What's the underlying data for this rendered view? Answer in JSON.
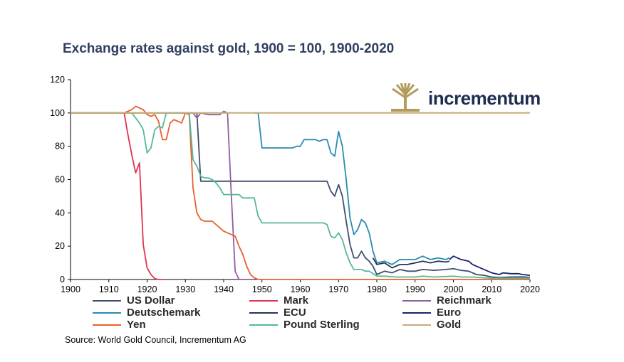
{
  "title": "Exchange rates against gold, 1900 = 100, 1900-2020",
  "source": "Source: World Gold Council, Incrementum AG",
  "logo": {
    "text": "incrementum",
    "icon": "tree-icon",
    "color": "#1f2d4f",
    "icon_color": "#b39b5c"
  },
  "chart_data": {
    "type": "line",
    "title": "Exchange rates against gold, 1900 = 100, 1900-2020",
    "xlabel": "",
    "ylabel": "",
    "xlim": [
      1900,
      2020
    ],
    "ylim": [
      0,
      120
    ],
    "xticks": [
      1900,
      1910,
      1920,
      1930,
      1940,
      1950,
      1960,
      1970,
      1980,
      1990,
      2000,
      2010,
      2020
    ],
    "yticks": [
      0,
      20,
      40,
      60,
      80,
      100,
      120
    ],
    "grid": false,
    "legend_position": "bottom",
    "series": [
      {
        "name": "US Dollar",
        "color": "#3f4e6e",
        "points": [
          [
            1900,
            100
          ],
          [
            1933,
            100
          ],
          [
            1934,
            59
          ],
          [
            1967,
            59
          ],
          [
            1968,
            53
          ],
          [
            1969,
            50
          ],
          [
            1970,
            57
          ],
          [
            1971,
            50
          ],
          [
            1972,
            35
          ],
          [
            1973,
            21
          ],
          [
            1974,
            13
          ],
          [
            1975,
            13
          ],
          [
            1976,
            17
          ],
          [
            1977,
            13
          ],
          [
            1978,
            11
          ],
          [
            1979,
            8
          ],
          [
            1980,
            3
          ],
          [
            1982,
            5
          ],
          [
            1984,
            4
          ],
          [
            1986,
            6
          ],
          [
            1988,
            5
          ],
          [
            1990,
            5
          ],
          [
            1992,
            6
          ],
          [
            1995,
            5.5
          ],
          [
            1998,
            6
          ],
          [
            2000,
            6.5
          ],
          [
            2002,
            5.5
          ],
          [
            2004,
            5
          ],
          [
            2006,
            3
          ],
          [
            2008,
            2.5
          ],
          [
            2010,
            1.5
          ],
          [
            2012,
            1.2
          ],
          [
            2015,
            1.5
          ],
          [
            2018,
            1.6
          ],
          [
            2020,
            1.3
          ]
        ]
      },
      {
        "name": "Mark",
        "color": "#e0334f",
        "points": [
          [
            1900,
            100
          ],
          [
            1914,
            100
          ],
          [
            1915,
            87
          ],
          [
            1916,
            75
          ],
          [
            1917,
            64
          ],
          [
            1918,
            70
          ],
          [
            1919,
            21
          ],
          [
            1920,
            7
          ],
          [
            1921,
            3
          ],
          [
            1922,
            0.5
          ],
          [
            1923,
            0
          ],
          [
            1924,
            0
          ]
        ]
      },
      {
        "name": "Reichmark",
        "color": "#8f5fa0",
        "points": [
          [
            1924,
            100
          ],
          [
            1932,
            100
          ],
          [
            1933,
            97
          ],
          [
            1934,
            100
          ],
          [
            1936,
            99
          ],
          [
            1938,
            99
          ],
          [
            1939,
            99
          ],
          [
            1940,
            101
          ],
          [
            1941,
            100
          ],
          [
            1942,
            50
          ],
          [
            1943,
            5
          ],
          [
            1944,
            0
          ],
          [
            1948,
            0
          ]
        ]
      },
      {
        "name": "Deutschemark",
        "color": "#2a8ab4",
        "points": [
          [
            1948,
            100
          ],
          [
            1949,
            100
          ],
          [
            1950,
            79
          ],
          [
            1958,
            79
          ],
          [
            1959,
            80
          ],
          [
            1960,
            80
          ],
          [
            1961,
            84
          ],
          [
            1962,
            84
          ],
          [
            1964,
            84
          ],
          [
            1965,
            83
          ],
          [
            1966,
            84
          ],
          [
            1967,
            84
          ],
          [
            1968,
            76
          ],
          [
            1969,
            74
          ],
          [
            1970,
            89
          ],
          [
            1971,
            80
          ],
          [
            1972,
            60
          ],
          [
            1973,
            37
          ],
          [
            1974,
            27
          ],
          [
            1975,
            30
          ],
          [
            1976,
            36
          ],
          [
            1977,
            34
          ],
          [
            1978,
            28
          ],
          [
            1979,
            17
          ],
          [
            1980,
            10
          ],
          [
            1982,
            11
          ],
          [
            1984,
            9
          ],
          [
            1986,
            12
          ],
          [
            1988,
            12
          ],
          [
            1990,
            12
          ],
          [
            1992,
            14
          ],
          [
            1994,
            12
          ],
          [
            1996,
            13
          ],
          [
            1998,
            12
          ],
          [
            1999,
            13
          ]
        ]
      },
      {
        "name": "ECU",
        "color": "#243556",
        "points": [
          [
            1979,
            13
          ],
          [
            1980,
            9
          ],
          [
            1982,
            10
          ],
          [
            1984,
            7
          ],
          [
            1986,
            9
          ],
          [
            1988,
            9
          ],
          [
            1990,
            10
          ],
          [
            1992,
            11
          ],
          [
            1994,
            10
          ],
          [
            1996,
            11
          ],
          [
            1998,
            10.5
          ],
          [
            1999,
            11
          ]
        ]
      },
      {
        "name": "Euro",
        "color": "#1a2368",
        "points": [
          [
            1999,
            12
          ],
          [
            2000,
            14
          ],
          [
            2001,
            13
          ],
          [
            2002,
            12
          ],
          [
            2004,
            11
          ],
          [
            2005,
            9
          ],
          [
            2006,
            8
          ],
          [
            2008,
            6
          ],
          [
            2010,
            4
          ],
          [
            2012,
            3
          ],
          [
            2013,
            4
          ],
          [
            2015,
            3.5
          ],
          [
            2017,
            3.5
          ],
          [
            2018,
            3
          ],
          [
            2020,
            2.5
          ]
        ]
      },
      {
        "name": "Yen",
        "color": "#e8602d",
        "points": [
          [
            1900,
            100
          ],
          [
            1914,
            100
          ],
          [
            1915,
            101
          ],
          [
            1916,
            102
          ],
          [
            1917,
            104
          ],
          [
            1918,
            103
          ],
          [
            1919,
            102
          ],
          [
            1920,
            99
          ],
          [
            1921,
            98
          ],
          [
            1922,
            99
          ],
          [
            1923,
            95
          ],
          [
            1924,
            84
          ],
          [
            1925,
            84
          ],
          [
            1926,
            94
          ],
          [
            1927,
            96
          ],
          [
            1928,
            95
          ],
          [
            1929,
            94
          ],
          [
            1930,
            100
          ],
          [
            1931,
            99
          ],
          [
            1932,
            55
          ],
          [
            1933,
            40
          ],
          [
            1934,
            36
          ],
          [
            1935,
            35
          ],
          [
            1936,
            35
          ],
          [
            1937,
            35
          ],
          [
            1938,
            33
          ],
          [
            1939,
            31
          ],
          [
            1940,
            29
          ],
          [
            1941,
            28
          ],
          [
            1942,
            27
          ],
          [
            1943,
            26
          ],
          [
            1944,
            20
          ],
          [
            1945,
            15
          ],
          [
            1946,
            8
          ],
          [
            1947,
            3
          ],
          [
            1948,
            1
          ],
          [
            1949,
            0
          ],
          [
            2020,
            0
          ]
        ]
      },
      {
        "name": "Pound Sterling",
        "color": "#54b89a",
        "points": [
          [
            1900,
            100
          ],
          [
            1914,
            100
          ],
          [
            1916,
            100
          ],
          [
            1918,
            94
          ],
          [
            1919,
            90
          ],
          [
            1920,
            76
          ],
          [
            1921,
            79
          ],
          [
            1922,
            90
          ],
          [
            1923,
            92
          ],
          [
            1924,
            91
          ],
          [
            1925,
            100
          ],
          [
            1931,
            100
          ],
          [
            1932,
            72
          ],
          [
            1933,
            68
          ],
          [
            1934,
            62
          ],
          [
            1935,
            61
          ],
          [
            1936,
            61
          ],
          [
            1937,
            60
          ],
          [
            1938,
            58
          ],
          [
            1939,
            55
          ],
          [
            1940,
            51
          ],
          [
            1944,
            51
          ],
          [
            1945,
            49
          ],
          [
            1947,
            49
          ],
          [
            1948,
            49
          ],
          [
            1949,
            38
          ],
          [
            1950,
            34
          ],
          [
            1966,
            34
          ],
          [
            1967,
            33
          ],
          [
            1968,
            26
          ],
          [
            1969,
            25
          ],
          [
            1970,
            28
          ],
          [
            1971,
            24
          ],
          [
            1972,
            16
          ],
          [
            1973,
            10
          ],
          [
            1974,
            6
          ],
          [
            1976,
            6
          ],
          [
            1977,
            5
          ],
          [
            1978,
            5
          ],
          [
            1980,
            2
          ],
          [
            1982,
            2
          ],
          [
            1985,
            1.5
          ],
          [
            1988,
            1.5
          ],
          [
            1990,
            1.5
          ],
          [
            1992,
            2
          ],
          [
            1995,
            1.5
          ],
          [
            2000,
            2
          ],
          [
            2002,
            1.5
          ],
          [
            2005,
            1.5
          ],
          [
            2008,
            1
          ],
          [
            2010,
            0.8
          ],
          [
            2015,
            0.8
          ],
          [
            2020,
            0.8
          ]
        ]
      },
      {
        "name": "Gold",
        "color": "#c5ad7a",
        "points": [
          [
            1900,
            100
          ],
          [
            2020,
            100
          ]
        ]
      }
    ]
  },
  "legend_rows": [
    [
      "US Dollar",
      "Mark",
      "Reichmark"
    ],
    [
      "Deutschemark",
      "ECU",
      "Euro"
    ],
    [
      "Yen",
      "Pound Sterling",
      "Gold"
    ]
  ]
}
